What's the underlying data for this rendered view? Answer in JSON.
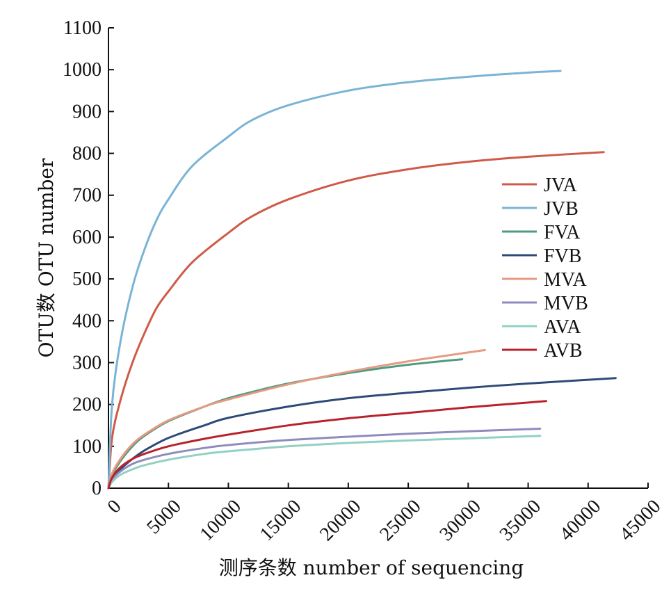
{
  "chart_data": {
    "type": "line",
    "title": "",
    "xlabel": "测序条数 number of sequencing",
    "ylabel": "OTU数 OTU number",
    "xlim": [
      0,
      45000
    ],
    "ylim": [
      0,
      1100
    ],
    "xticks": [
      "0",
      "5000",
      "10000",
      "15000",
      "20000",
      "25000",
      "30000",
      "35000",
      "40000",
      "45000"
    ],
    "yticks": [
      "0",
      "100",
      "200",
      "300",
      "400",
      "500",
      "600",
      "700",
      "800",
      "900",
      "1000",
      "1100"
    ],
    "grid": false,
    "legend_position": "right",
    "series": [
      {
        "name": "JVA",
        "color": "#d05a48",
        "x": [
          0,
          300,
          1000,
          2000,
          3000,
          4000,
          5000,
          7000,
          10000,
          12000,
          15000,
          20000,
          25000,
          30000,
          35000,
          41300
        ],
        "y": [
          0,
          120,
          210,
          300,
          370,
          430,
          470,
          540,
          610,
          650,
          690,
          735,
          762,
          780,
          792,
          803
        ]
      },
      {
        "name": "JVB",
        "color": "#7ab4d4",
        "x": [
          0,
          300,
          1000,
          2000,
          3000,
          4000,
          5000,
          7000,
          10000,
          12000,
          15000,
          20000,
          25000,
          30000,
          35000,
          37700
        ],
        "y": [
          0,
          200,
          350,
          480,
          570,
          640,
          690,
          770,
          840,
          880,
          915,
          950,
          970,
          983,
          993,
          997
        ]
      },
      {
        "name": "FVA",
        "color": "#4f9a82",
        "x": [
          0,
          300,
          1000,
          2000,
          3000,
          5000,
          8000,
          10000,
          12000,
          15000,
          20000,
          25000,
          29500
        ],
        "y": [
          0,
          30,
          65,
          100,
          125,
          160,
          195,
          215,
          230,
          250,
          275,
          295,
          308
        ]
      },
      {
        "name": "FVB",
        "color": "#2f4a78",
        "x": [
          0,
          300,
          1000,
          2000,
          3000,
          5000,
          8000,
          10000,
          15000,
          20000,
          25000,
          30000,
          35000,
          42300
        ],
        "y": [
          0,
          20,
          45,
          70,
          90,
          120,
          150,
          168,
          195,
          215,
          228,
          240,
          250,
          263
        ]
      },
      {
        "name": "MVA",
        "color": "#e59a82",
        "x": [
          0,
          300,
          1000,
          2000,
          3000,
          5000,
          8000,
          10000,
          15000,
          20000,
          25000,
          31400
        ],
        "y": [
          0,
          35,
          70,
          105,
          128,
          162,
          195,
          212,
          248,
          278,
          303,
          330
        ]
      },
      {
        "name": "MVB",
        "color": "#8f8cbd",
        "x": [
          0,
          300,
          1000,
          2000,
          3000,
          5000,
          8000,
          10000,
          15000,
          20000,
          25000,
          30000,
          36000
        ],
        "y": [
          0,
          20,
          40,
          58,
          68,
          82,
          96,
          103,
          115,
          123,
          130,
          136,
          142
        ]
      },
      {
        "name": "AVA",
        "color": "#92d0c6",
        "x": [
          0,
          300,
          1000,
          2000,
          3000,
          5000,
          8000,
          10000,
          15000,
          20000,
          25000,
          30000,
          36000
        ],
        "y": [
          0,
          15,
          32,
          45,
          55,
          68,
          82,
          88,
          100,
          108,
          114,
          119,
          125
        ]
      },
      {
        "name": "AVB",
        "color": "#b8232b",
        "x": [
          0,
          300,
          1000,
          2000,
          3000,
          5000,
          8000,
          10000,
          15000,
          20000,
          25000,
          30000,
          36500
        ],
        "y": [
          0,
          25,
          50,
          70,
          82,
          100,
          118,
          128,
          150,
          167,
          180,
          193,
          208
        ]
      }
    ]
  }
}
